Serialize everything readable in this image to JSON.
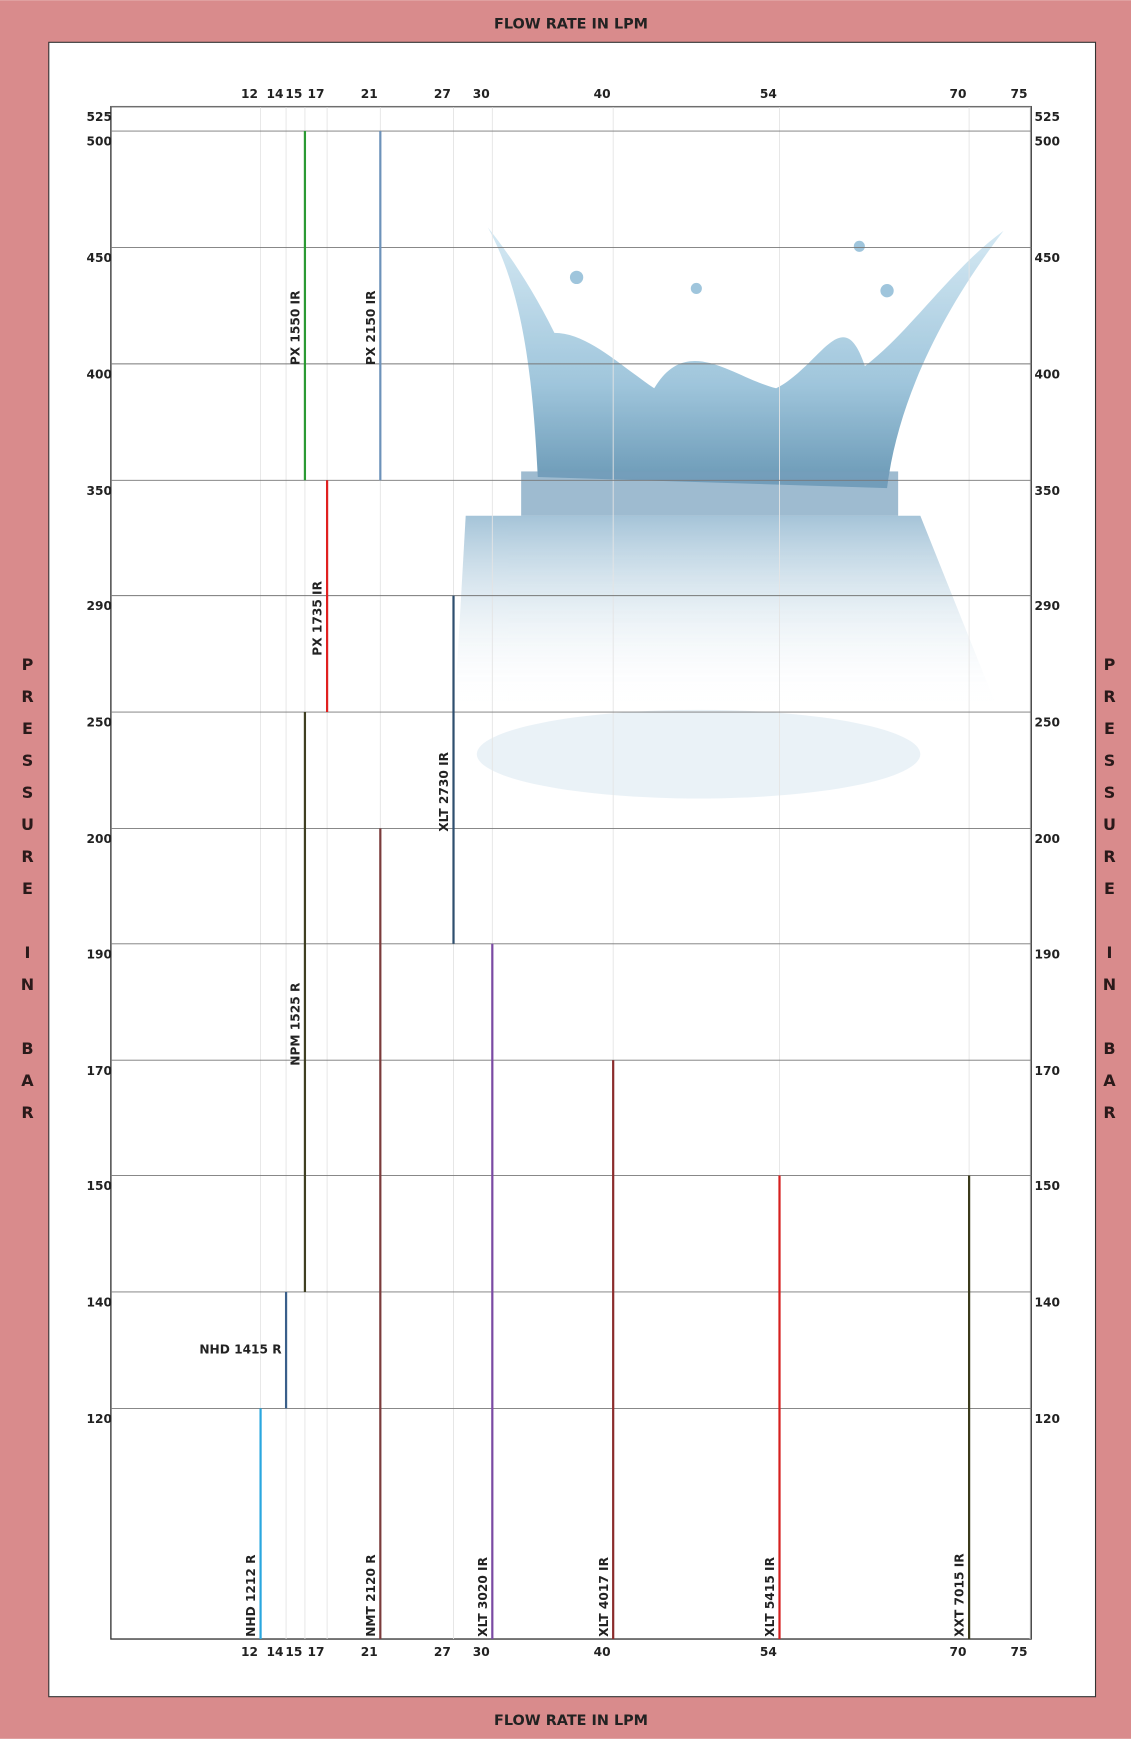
{
  "chart_data": {
    "type": "range-lines",
    "title": "FLOW RATE IN LPM",
    "ylabel": "PRESSURE IN BAR",
    "xticks": [
      12,
      14,
      15,
      17,
      21,
      27,
      30,
      40,
      54,
      70,
      75
    ],
    "yticks": [
      525,
      500,
      450,
      400,
      350,
      290,
      250,
      200,
      190,
      170,
      150,
      140,
      120
    ],
    "grid": true,
    "series": [
      {
        "name": "NHD 1212 R",
        "color": "#2aa7df",
        "flow": 12,
        "pressure_max": 120
      },
      {
        "name": "NHD 1415 R",
        "color": "#3a5f8a",
        "flow": 14,
        "pressure_min": 120,
        "pressure_max": 140
      },
      {
        "name": "NPM 1525 R",
        "color": "#3f3f22",
        "flow": 15,
        "pressure_min": 140,
        "pressure_max": 250
      },
      {
        "name": "PX 1550 IR",
        "color": "#2b9a33",
        "flow": 15,
        "pressure_min": 350,
        "pressure_max": 500
      },
      {
        "name": "PX 1735 IR",
        "color": "#e0201f",
        "flow": 17,
        "pressure_min": 250,
        "pressure_max": 350
      },
      {
        "name": "NMT 2120 R",
        "color": "#7b3b3b",
        "flow": 21,
        "pressure_max": 200
      },
      {
        "name": "PX 2150 IR",
        "color": "#6d92ba",
        "flow": 21,
        "pressure_min": 350,
        "pressure_max": 500
      },
      {
        "name": "XLT 2730 IR",
        "color": "#2f4f6f",
        "flow": 27,
        "pressure_min": 190,
        "pressure_max": 290
      },
      {
        "name": "XLT 3020 IR",
        "color": "#7b4aa3",
        "flow": 30,
        "pressure_max": 190
      },
      {
        "name": "XLT 4017 IR",
        "color": "#8b2c2c",
        "flow": 40,
        "pressure_max": 170
      },
      {
        "name": "XLT 5415 IR",
        "color": "#d6201f",
        "flow": 54,
        "pressure_max": 150
      },
      {
        "name": "XXT 7015 IR",
        "color": "#3b3b1c",
        "flow": 70,
        "pressure_max": 150
      }
    ]
  }
}
